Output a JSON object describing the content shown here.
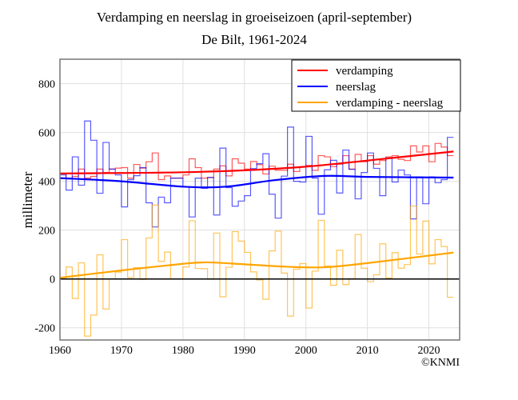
{
  "chart_data": {
    "type": "line",
    "title": "Verdamping en neerslag in groeiseizoen (april-september)",
    "subtitle": "De Bilt, 1961-2024",
    "xlabel": "",
    "ylabel": "millimeter",
    "xlim": [
      1960,
      2025
    ],
    "ylim": [
      -250,
      900
    ],
    "xticks": [
      1960,
      1970,
      1980,
      1990,
      2000,
      2010,
      2020
    ],
    "yticks": [
      -200,
      0,
      200,
      400,
      600,
      800
    ],
    "grid": true,
    "legend_position": "top-right",
    "credit": "©KNMI",
    "years_first": 1961,
    "series": [
      {
        "name": "verdamping",
        "color": "#ff0000",
        "style": "step",
        "values": [
          430,
          413,
          420,
          450,
          413,
          420,
          450,
          436,
          450,
          454,
          456,
          413,
          469,
          454,
          480,
          516,
          407,
          422,
          413,
          413,
          426,
          492,
          456,
          413,
          415,
          450,
          463,
          422,
          492,
          474,
          450,
          481,
          468,
          430,
          462,
          445,
          445,
          470,
          440,
          460,
          465,
          445,
          505,
          500,
          460,
          470,
          505,
          450,
          510,
          480,
          505,
          470,
          485,
          500,
          505,
          490,
          485,
          545,
          520,
          545,
          480,
          555,
          540,
          505
        ]
      },
      {
        "name": "neerslag",
        "color": "#0000ff",
        "style": "step",
        "values": [
          426,
          364,
          500,
          384,
          647,
          568,
          351,
          559,
          450,
          426,
          295,
          407,
          423,
          456,
          312,
          213,
          335,
          312,
          413,
          413,
          377,
          254,
          413,
          371,
          416,
          262,
          536,
          374,
          298,
          319,
          341,
          452,
          472,
          513,
          347,
          249,
          421,
          622,
          400,
          397,
          584,
          413,
          265,
          447,
          486,
          352,
          528,
          449,
          328,
          436,
          516,
          453,
          341,
          496,
          397,
          446,
          426,
          246,
          418,
          308,
          418,
          394,
          407,
          580
        ]
      },
      {
        "name": "verdamping - neerslag",
        "color": "#ffa500",
        "style": "step",
        "derived": "verdamping minus neerslag"
      }
    ],
    "trends": [
      {
        "series": "verdamping",
        "color": "#ff0000",
        "points": [
          [
            1960,
            432
          ],
          [
            1970,
            434
          ],
          [
            1980,
            437
          ],
          [
            1990,
            445
          ],
          [
            2000,
            460
          ],
          [
            2010,
            485
          ],
          [
            2024,
            522
          ]
        ]
      },
      {
        "series": "neerslag",
        "color": "#0000ff",
        "points": [
          [
            1960,
            413
          ],
          [
            1970,
            400
          ],
          [
            1980,
            378
          ],
          [
            1987,
            378
          ],
          [
            1995,
            405
          ],
          [
            2003,
            422
          ],
          [
            2010,
            418
          ],
          [
            2024,
            415
          ]
        ]
      },
      {
        "series": "verdamping - neerslag",
        "color": "#ffa500",
        "points": [
          [
            1960,
            5
          ],
          [
            1970,
            35
          ],
          [
            1980,
            62
          ],
          [
            1984,
            68
          ],
          [
            1990,
            60
          ],
          [
            1997,
            50
          ],
          [
            2003,
            48
          ],
          [
            2010,
            65
          ],
          [
            2024,
            108
          ]
        ]
      }
    ]
  }
}
